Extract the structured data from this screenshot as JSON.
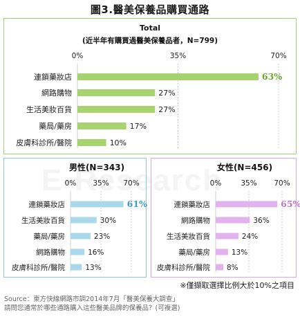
{
  "title": "圖3.醫美保養品購買通路",
  "footnote": "※僅擷取選擇比例大於10%之項目",
  "source_lines": [
    "Source：東方快線網路市調2014年7月「醫美保養大調查」",
    "請問您通常於哪些通路購入這些醫美品牌的保養品？(可複選)"
  ],
  "watermark": "E-Research",
  "colors": {
    "total_bar": "#a6d36d",
    "total_top_label": "#6aa632",
    "male_bar": "#a8d8ea",
    "male_top_label": "#3d9cc8",
    "female_bar": "#e1b2ec",
    "female_top_label": "#c272d6"
  },
  "chart_data": [
    {
      "type": "bar",
      "orientation": "horizontal",
      "title": "Total",
      "subtitle": "(近半年有購買過醫美保養品者，N=799)",
      "xlim": [
        0,
        70
      ],
      "ticks": [
        "0%",
        "35%",
        "70%"
      ],
      "categories": [
        "連鎖藥妝店",
        "網路購物",
        "生活美妝百貨",
        "藥局/藥房",
        "皮膚科診所/醫院"
      ],
      "values": [
        63,
        27,
        27,
        17,
        10
      ],
      "labels": [
        "63%",
        "27%",
        "27%",
        "17%",
        "10%"
      ]
    },
    {
      "type": "bar",
      "orientation": "horizontal",
      "title": "男性(N=343)",
      "xlim": [
        0,
        70
      ],
      "ticks": [
        "0%",
        "35%",
        "70%"
      ],
      "categories": [
        "連鎖藥妝店",
        "生活美妝百貨",
        "藥局/藥房",
        "網路購物",
        "皮膚科診所/醫院"
      ],
      "values": [
        61,
        30,
        23,
        16,
        13
      ],
      "labels": [
        "61%",
        "30%",
        "23%",
        "16%",
        "13%"
      ]
    },
    {
      "type": "bar",
      "orientation": "horizontal",
      "title": "女性(N=456)",
      "xlim": [
        0,
        70
      ],
      "ticks": [
        "0%",
        "35%",
        "70%"
      ],
      "categories": [
        "連鎖藥妝店",
        "網路購物",
        "生活美妝百貨",
        "藥局/藥房",
        "皮膚科診所/醫院"
      ],
      "values": [
        65,
        36,
        24,
        13,
        8
      ],
      "labels": [
        "65%",
        "36%",
        "24%",
        "13%",
        "8%"
      ]
    }
  ]
}
